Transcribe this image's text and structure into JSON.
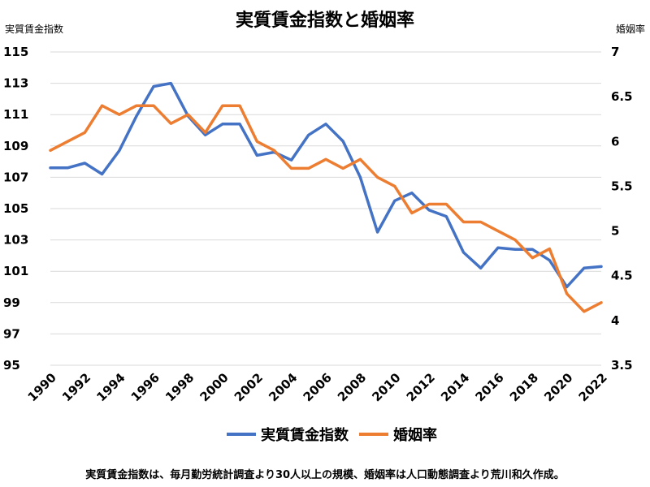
{
  "chart_data": {
    "type": "line",
    "title": "実質賃金指数と婚姻率",
    "ylabel_left": "実質賃金指数",
    "ylabel_right": "婚姻率",
    "x": [
      1990,
      1991,
      1992,
      1993,
      1994,
      1995,
      1996,
      1997,
      1998,
      1999,
      2000,
      2001,
      2002,
      2003,
      2004,
      2005,
      2006,
      2007,
      2008,
      2009,
      2010,
      2011,
      2012,
      2013,
      2014,
      2015,
      2016,
      2017,
      2018,
      2019,
      2020,
      2021,
      2022
    ],
    "xticks": [
      "1990",
      "1992",
      "1994",
      "1996",
      "1998",
      "2000",
      "2002",
      "2004",
      "2006",
      "2008",
      "2010",
      "2012",
      "2014",
      "2016",
      "2018",
      "2020",
      "2022"
    ],
    "ylim_left": [
      95,
      115
    ],
    "yticks_left": [
      "95",
      "97",
      "99",
      "101",
      "103",
      "105",
      "107",
      "109",
      "111",
      "113",
      "115"
    ],
    "ylim_right": [
      3.5,
      7
    ],
    "yticks_right": [
      "3.5",
      "4",
      "4.5",
      "5",
      "5.5",
      "6",
      "6.5",
      "7"
    ],
    "grid": true,
    "legend_position": "bottom",
    "series": [
      {
        "name": "実質賃金指数",
        "axis": "left",
        "color": "#4472C4",
        "values": [
          107.6,
          107.6,
          107.9,
          107.2,
          108.7,
          110.9,
          112.8,
          113.0,
          110.9,
          109.7,
          110.4,
          110.4,
          108.4,
          108.6,
          108.1,
          109.7,
          110.4,
          109.3,
          107.0,
          103.5,
          105.5,
          106.0,
          104.9,
          104.5,
          102.2,
          101.2,
          102.5,
          102.4,
          102.4,
          101.7,
          100.0,
          101.2,
          101.3
        ]
      },
      {
        "name": "婚姻率",
        "axis": "right",
        "color": "#ED7D31",
        "values": [
          5.9,
          6.0,
          6.1,
          6.4,
          6.3,
          6.4,
          6.4,
          6.2,
          6.3,
          6.1,
          6.4,
          6.4,
          6.0,
          5.9,
          5.7,
          5.7,
          5.8,
          5.7,
          5.8,
          5.6,
          5.5,
          5.2,
          5.3,
          5.3,
          5.1,
          5.1,
          5.0,
          4.9,
          4.7,
          4.8,
          4.3,
          4.1,
          4.2
        ]
      }
    ]
  },
  "footnote": "実質賃金指数は、毎月勤労統計調査より30人以上の規模、婚姻率は人口動態調査より荒川和久作成。"
}
